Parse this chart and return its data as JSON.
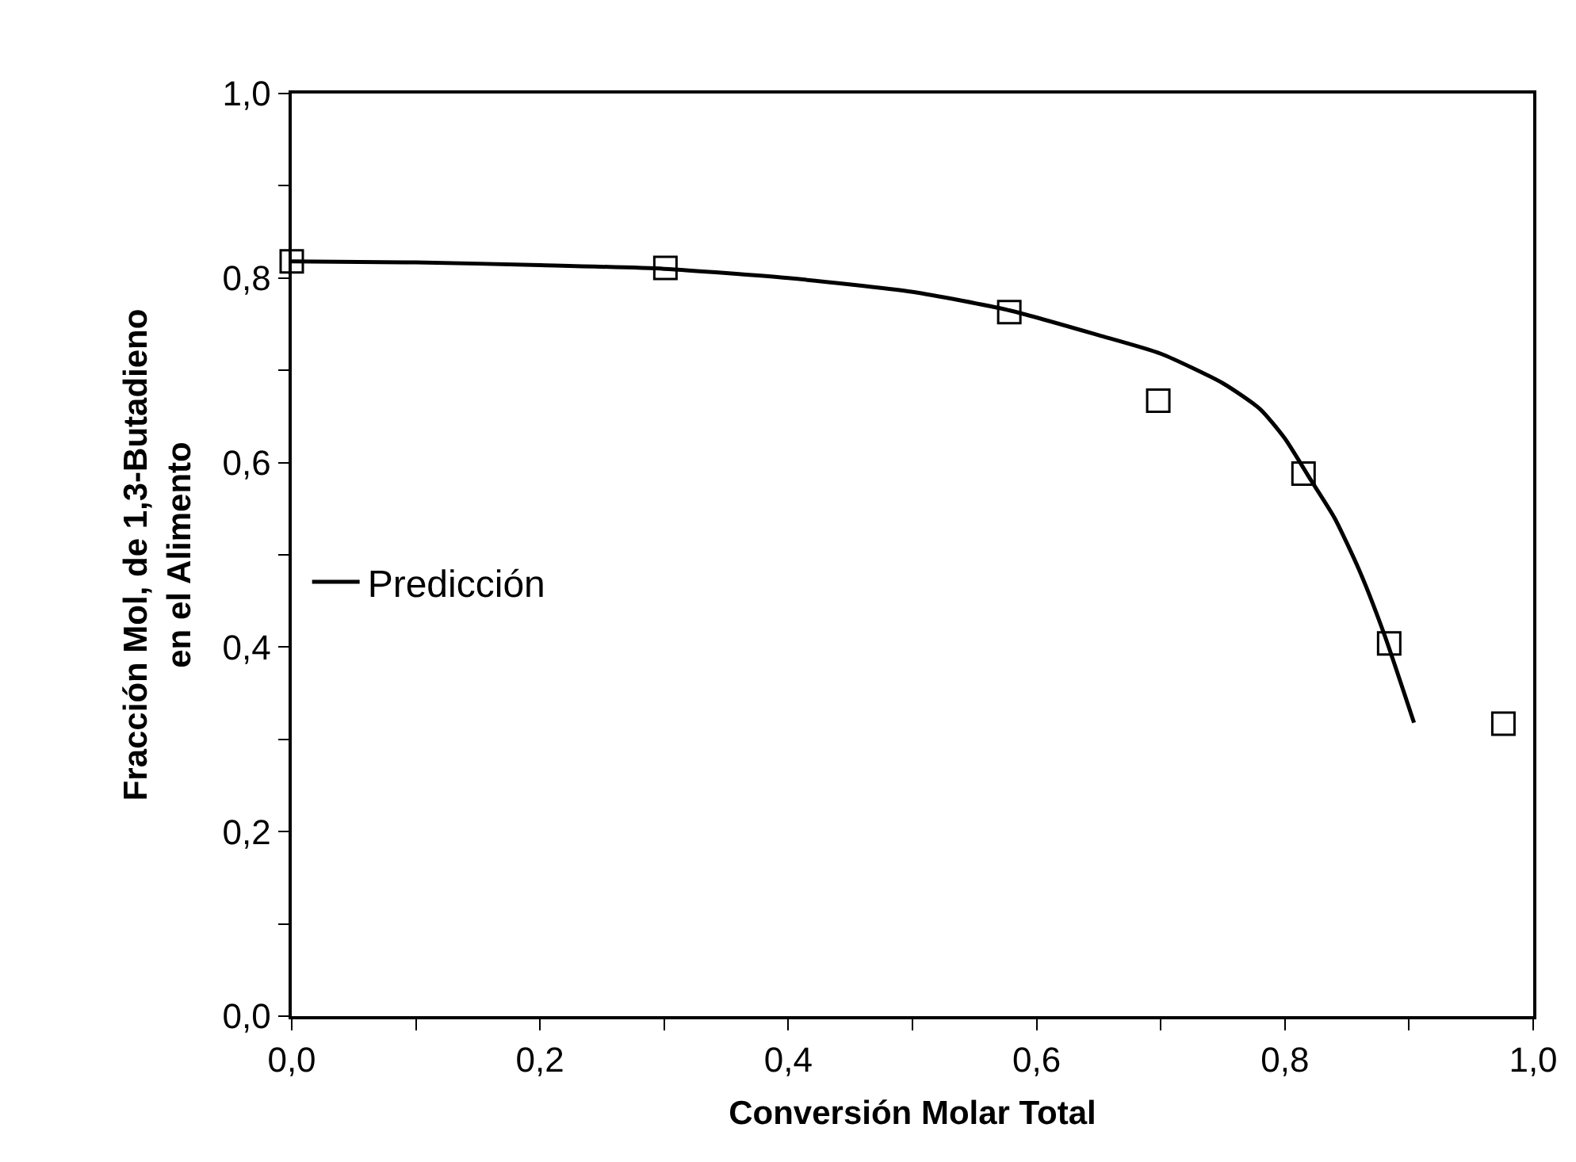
{
  "chart_data": {
    "type": "line",
    "xlabel": "Conversión Molar Total",
    "ylabel": "Fracción Mol, de 1,3-Butadieno\nen el Alimento",
    "series": [
      {
        "name": "Predicción",
        "color": "#000000",
        "marker": "none",
        "line_style": "solid",
        "x": [
          0,
          0.1,
          0.2,
          0.3,
          0.4,
          0.5,
          0.578,
          0.65,
          0.7,
          0.75,
          0.78,
          0.8,
          0.82,
          0.84,
          0.86,
          0.88,
          0.904
        ],
        "values": [
          0.818,
          0.817,
          0.814,
          0.81,
          0.8,
          0.785,
          0.765,
          0.738,
          0.718,
          0.686,
          0.658,
          0.626,
          0.583,
          0.54,
          0.483,
          0.414,
          0.318
        ]
      },
      {
        "type": "scatter",
        "color": "#000000",
        "marker": "square",
        "x": [
          0.0,
          0.301,
          0.578,
          0.698,
          0.815,
          0.884,
          0.976
        ],
        "values": [
          0.818,
          0.811,
          0.763,
          0.667,
          0.588,
          0.404,
          0.317
        ]
      }
    ],
    "xlim": [
      0,
      1
    ],
    "ylim": [
      0,
      1
    ],
    "xticks": [
      {
        "value": 0,
        "label": "0,0"
      },
      {
        "value": 0.1,
        "label": null
      },
      {
        "value": 0.2,
        "label": "0,2"
      },
      {
        "value": 0.3,
        "label": null
      },
      {
        "value": 0.4,
        "label": "0,4"
      },
      {
        "value": 0.5,
        "label": null
      },
      {
        "value": 0.6,
        "label": "0,6"
      },
      {
        "value": 0.7,
        "label": null
      },
      {
        "value": 0.8,
        "label": "0,8"
      },
      {
        "value": 0.9,
        "label": null
      },
      {
        "value": 1,
        "label": "1,0"
      }
    ],
    "yticks": [
      {
        "value": 0,
        "label": "0,0"
      },
      {
        "value": 0.1,
        "label": null
      },
      {
        "value": 0.2,
        "label": "0,2"
      },
      {
        "value": 0.3,
        "label": null
      },
      {
        "value": 0.4,
        "label": "0,4"
      },
      {
        "value": 0.5,
        "label": null
      },
      {
        "value": 0.6,
        "label": "0,6"
      },
      {
        "value": 0.7,
        "label": null
      },
      {
        "value": 0.8,
        "label": "0,8"
      },
      {
        "value": 0.9,
        "label": null
      },
      {
        "value": 1,
        "label": "1,0"
      }
    ],
    "grid": false,
    "legend": "left"
  }
}
